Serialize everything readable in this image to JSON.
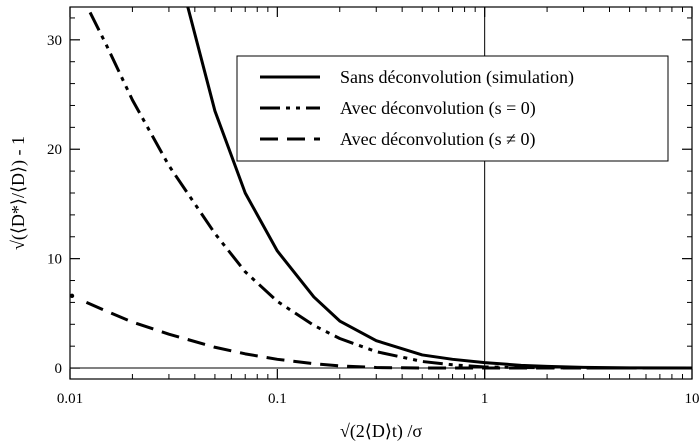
{
  "chart_data": {
    "type": "line",
    "xscale": "log",
    "xlim": [
      0.01,
      10
    ],
    "ylim": [
      -1,
      33
    ],
    "xticks": [
      0.01,
      0.1,
      1,
      10
    ],
    "xtick_labels": [
      "0.01",
      "0.1",
      "1",
      "10"
    ],
    "yticks": [
      0,
      10,
      20,
      30
    ],
    "ytick_labels": [
      "0",
      "10",
      "20",
      "30"
    ],
    "xlabel": "√(2⟨D⟩t) /σ",
    "ylabel": "√(⟨D*⟩/⟨D⟩) - 1",
    "legend_position": "top-right",
    "reference_lines": {
      "horizontal_y": 0,
      "vertical_x": 1
    },
    "series": [
      {
        "name": "Sans déconvolution (simulation)",
        "style": "solid",
        "x": [
          0.037,
          0.05,
          0.07,
          0.1,
          0.15,
          0.2,
          0.3,
          0.5,
          0.7,
          1,
          1.5,
          2,
          3,
          5,
          10
        ],
        "y": [
          33,
          23.5,
          16,
          10.7,
          6.5,
          4.3,
          2.5,
          1.2,
          0.8,
          0.5,
          0.25,
          0.15,
          0.06,
          0.02,
          0
        ]
      },
      {
        "name": "Avec déconvolution (s = 0)",
        "style": "dash-dot-dot",
        "x": [
          0.0125,
          0.015,
          0.02,
          0.03,
          0.05,
          0.07,
          0.1,
          0.15,
          0.2,
          0.3,
          0.5,
          0.7,
          1,
          1.5,
          2,
          3,
          5,
          10
        ],
        "y": [
          32.5,
          29.5,
          24.5,
          18.5,
          12.3,
          8.8,
          6.1,
          3.9,
          2.7,
          1.5,
          0.6,
          0.3,
          0.1,
          0.05,
          0.02,
          0,
          0,
          0
        ]
      },
      {
        "name": "Avec déconvolution (s ≠ 0)",
        "style": "dashed",
        "x": [
          0.012,
          0.015,
          0.02,
          0.03,
          0.05,
          0.07,
          0.1,
          0.15,
          0.2,
          0.3,
          0.5,
          1,
          2,
          10
        ],
        "y": [
          6.0,
          5.2,
          4.2,
          3.1,
          1.9,
          1.3,
          0.8,
          0.4,
          0.2,
          0.05,
          0,
          0,
          0,
          0
        ]
      }
    ],
    "extra_points": [
      {
        "x": 0.01,
        "y": 6.6
      }
    ]
  }
}
